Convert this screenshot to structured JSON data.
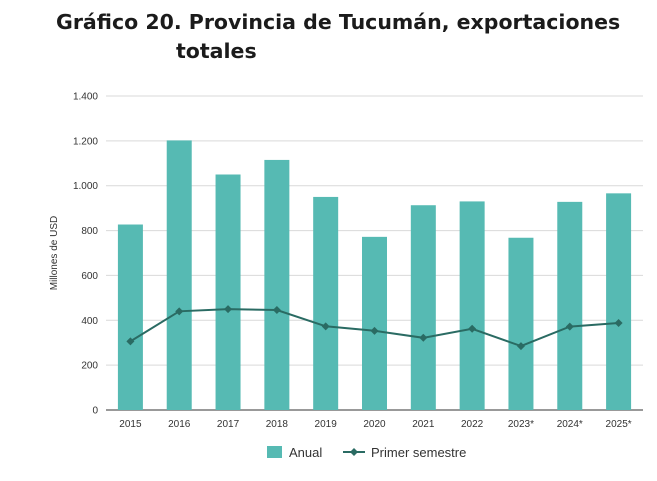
{
  "title": {
    "line1": "Gráfico 20. Provincia de Tucumán, exportaciones",
    "line2": "totales"
  },
  "colors": {
    "bar": "#56bab3",
    "line": "#2a6b63",
    "grid": "#d9d9d9",
    "axis": "#333333"
  },
  "chart_data": {
    "type": "bar",
    "title": "Gráfico 20. Provincia de Tucumán, exportaciones totales",
    "xlabel": "",
    "ylabel": "Millones de USD",
    "ylim": [
      0,
      1400
    ],
    "yticks": [
      0,
      200,
      400,
      600,
      800,
      1000,
      1200,
      1400
    ],
    "ytick_labels": [
      "0",
      "200",
      "400",
      "600",
      "800",
      "1.000",
      "1.200",
      "1.400"
    ],
    "grid": true,
    "legend_position": "bottom",
    "categories": [
      "2015",
      "2016",
      "2017",
      "2018",
      "2019",
      "2020",
      "2021",
      "2022",
      "2023*",
      "2024*",
      "2025*"
    ],
    "series": [
      {
        "name": "Anual",
        "type": "bar",
        "values": [
          827,
          1202,
          1050,
          1115,
          950,
          772,
          913,
          930,
          768,
          928,
          966
        ]
      },
      {
        "name": "Primer semestre",
        "type": "line",
        "values": [
          306,
          440,
          450,
          446,
          373,
          353,
          322,
          362,
          285,
          372,
          388
        ]
      }
    ]
  }
}
